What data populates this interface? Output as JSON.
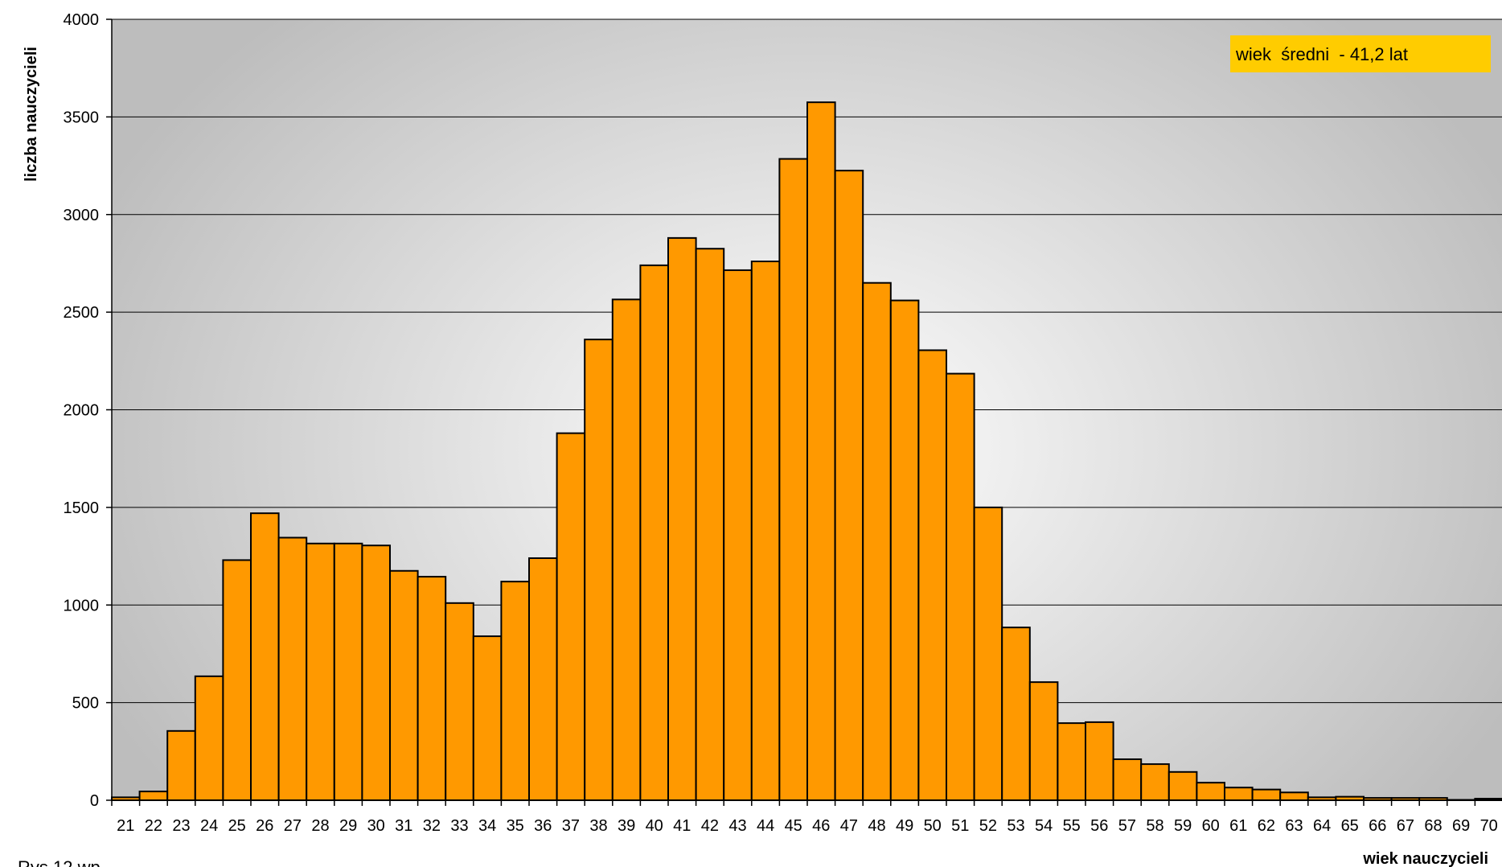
{
  "chart_data": {
    "type": "bar",
    "xlabel": "wiek nauczycieli",
    "ylabel": "liczba nauczycieli",
    "ylim": [
      0,
      4000
    ],
    "yticks": [
      0,
      500,
      1000,
      1500,
      2000,
      2500,
      3000,
      3500,
      4000
    ],
    "grid": true,
    "categories": [
      "21",
      "22",
      "23",
      "24",
      "25",
      "26",
      "27",
      "28",
      "29",
      "30",
      "31",
      "32",
      "33",
      "34",
      "35",
      "36",
      "37",
      "38",
      "39",
      "40",
      "41",
      "42",
      "43",
      "44",
      "45",
      "46",
      "47",
      "48",
      "49",
      "50",
      "51",
      "52",
      "53",
      "54",
      "55",
      "56",
      "57",
      "58",
      "59",
      "60",
      "61",
      "62",
      "63",
      "64",
      "65",
      "66",
      "67",
      "68",
      "69",
      "70"
    ],
    "values": [
      15,
      45,
      355,
      635,
      1230,
      1470,
      1345,
      1315,
      1315,
      1305,
      1175,
      1145,
      1010,
      840,
      1120,
      1240,
      1880,
      2360,
      2565,
      2740,
      2880,
      2825,
      2715,
      2760,
      3285,
      3575,
      3225,
      2650,
      2560,
      2305,
      2185,
      1500,
      885,
      605,
      395,
      400,
      210,
      185,
      145,
      90,
      65,
      55,
      40,
      15,
      18,
      12,
      12,
      12,
      2,
      8
    ],
    "annotation": "wiek  średni  - 41,2 lat",
    "footnote": "Rys.12 wp",
    "colors": {
      "bar_fill": "#FF9900",
      "bar_stroke": "#000000",
      "annotation_bg": "#FFCC00",
      "plot_bg_center": "#FFFFFF",
      "plot_bg_edge": "#BDBDBD",
      "grid": "#000000"
    }
  }
}
